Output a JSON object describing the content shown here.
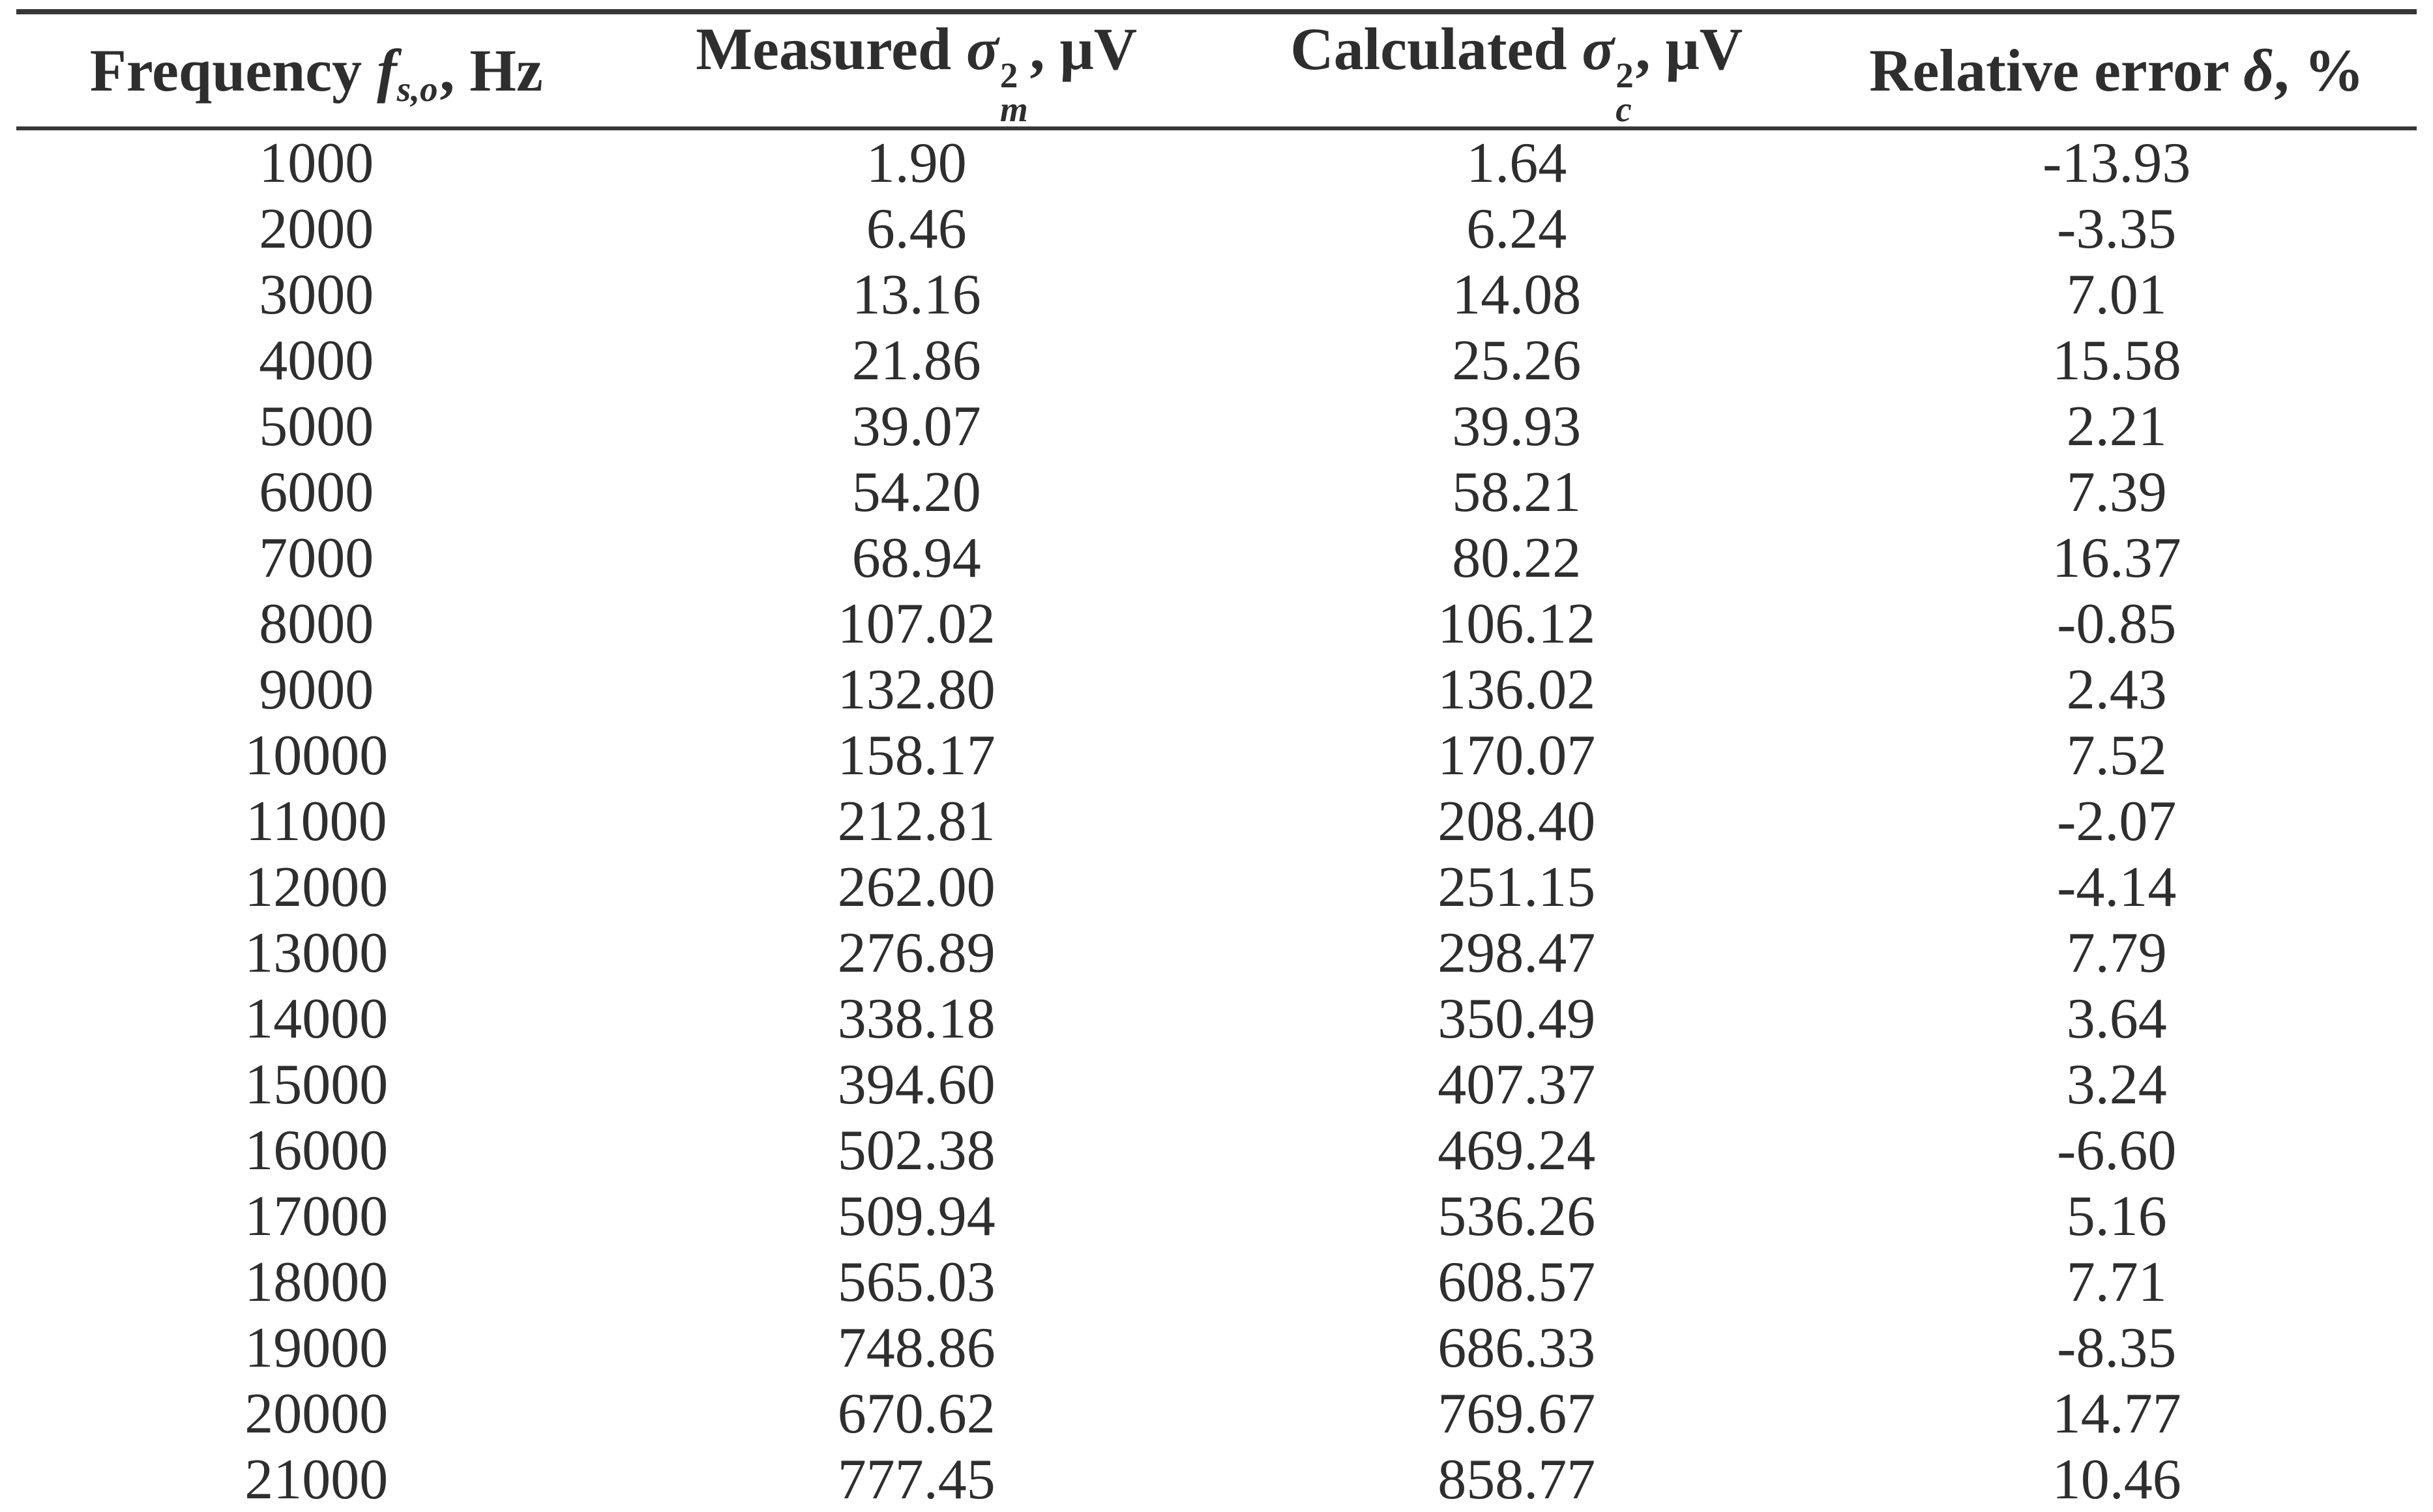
{
  "colors": {
    "rule": "#373737",
    "text": "#2e2e2e",
    "background": "#ffffff"
  },
  "table": {
    "columns": [
      {
        "name": "frequency",
        "prefix": "Frequency ",
        "base": "f",
        "sub": "s,o",
        "suffix": ", Hz"
      },
      {
        "name": "measured",
        "prefix": "Measured ",
        "base": "σ",
        "sup": "2",
        "sub": "m",
        "suffix": ", μV"
      },
      {
        "name": "calculated",
        "prefix": "Calculated ",
        "base": "σ",
        "sup": "2",
        "sub": "c",
        "suffix": ", μV"
      },
      {
        "name": "relative_error",
        "prefix": "Relative error ",
        "base": "δ",
        "suffix": ", %"
      }
    ],
    "rows": [
      [
        "1000",
        "1.90",
        "1.64",
        "-13.93"
      ],
      [
        "2000",
        "6.46",
        "6.24",
        "-3.35"
      ],
      [
        "3000",
        "13.16",
        "14.08",
        "7.01"
      ],
      [
        "4000",
        "21.86",
        "25.26",
        "15.58"
      ],
      [
        "5000",
        "39.07",
        "39.93",
        "2.21"
      ],
      [
        "6000",
        "54.20",
        "58.21",
        "7.39"
      ],
      [
        "7000",
        "68.94",
        "80.22",
        "16.37"
      ],
      [
        "8000",
        "107.02",
        "106.12",
        "-0.85"
      ],
      [
        "9000",
        "132.80",
        "136.02",
        "2.43"
      ],
      [
        "10000",
        "158.17",
        "170.07",
        "7.52"
      ],
      [
        "11000",
        "212.81",
        "208.40",
        "-2.07"
      ],
      [
        "12000",
        "262.00",
        "251.15",
        "-4.14"
      ],
      [
        "13000",
        "276.89",
        "298.47",
        "7.79"
      ],
      [
        "14000",
        "338.18",
        "350.49",
        "3.64"
      ],
      [
        "15000",
        "394.60",
        "407.37",
        "3.24"
      ],
      [
        "16000",
        "502.38",
        "469.24",
        "-6.60"
      ],
      [
        "17000",
        "509.94",
        "536.26",
        "5.16"
      ],
      [
        "18000",
        "565.03",
        "608.57",
        "7.71"
      ],
      [
        "19000",
        "748.86",
        "686.33",
        "-8.35"
      ],
      [
        "20000",
        "670.62",
        "769.67",
        "14.77"
      ],
      [
        "21000",
        "777.45",
        "858.77",
        "10.46"
      ]
    ]
  }
}
